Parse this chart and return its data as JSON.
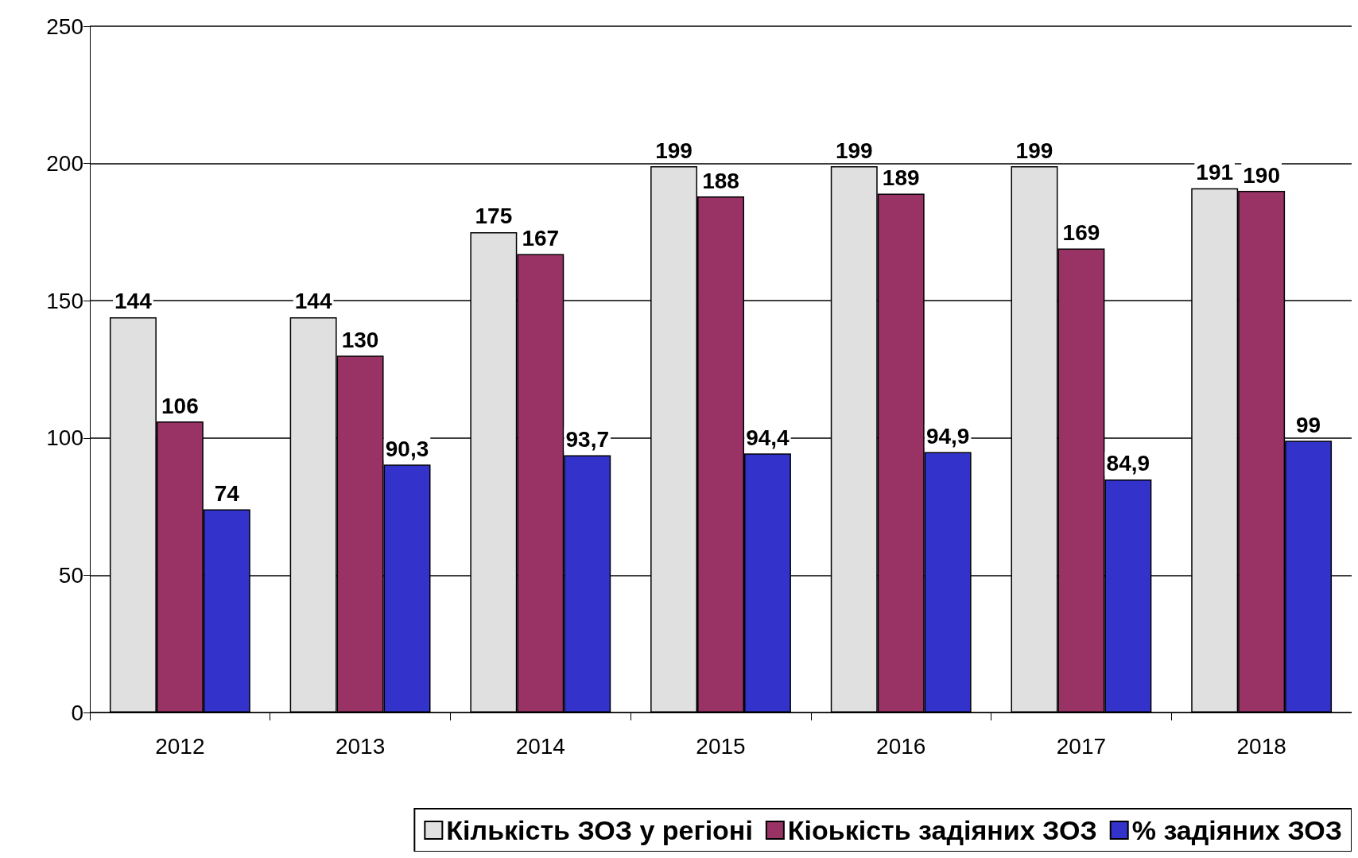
{
  "chart_data": {
    "type": "bar",
    "categories": [
      "2012",
      "2013",
      "2014",
      "2015",
      "2016",
      "2017",
      "2018"
    ],
    "series": [
      {
        "name": "Кількість ЗОЗ у регіоні",
        "color": "#e0e0e0",
        "values": [
          144,
          144,
          175,
          199,
          199,
          199,
          191
        ],
        "value_labels": [
          "144",
          "144",
          "175",
          "199",
          "199",
          "199",
          "191"
        ]
      },
      {
        "name": "Кіoькість задіяних ЗОЗ",
        "color": "#993366",
        "values": [
          106,
          130,
          167,
          188,
          189,
          169,
          190
        ],
        "value_labels": [
          "106",
          "130",
          "167",
          "188",
          "189",
          "169",
          "190"
        ]
      },
      {
        "name": "% задіяних ЗОЗ",
        "color": "#3333cc",
        "values": [
          74,
          90.3,
          93.7,
          94.4,
          94.9,
          84.9,
          99
        ],
        "value_labels": [
          "74",
          "90,3",
          "93,7",
          "94,4",
          "94,9",
          "84,9",
          "99"
        ]
      }
    ],
    "ylim": [
      0,
      250
    ],
    "yticks": [
      0,
      50,
      100,
      150,
      200,
      250
    ],
    "grid": "y",
    "legend": "bottom"
  }
}
